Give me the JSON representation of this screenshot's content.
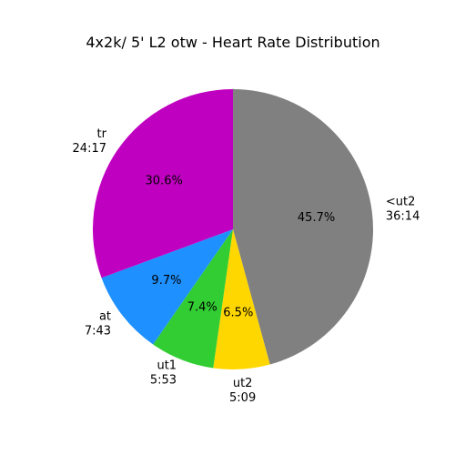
{
  "chart_data": {
    "type": "pie",
    "title": "4x2k/ 5' L2 otw - Heart Rate Distribution",
    "slices": [
      {
        "name": "<ut2",
        "time": "36:14",
        "percent_label": "45.7%",
        "value": 45.7,
        "color": "#808080"
      },
      {
        "name": "ut2",
        "time": "5:09",
        "percent_label": "6.5%",
        "value": 6.5,
        "color": "#FFD700"
      },
      {
        "name": "ut1",
        "time": "5:53",
        "percent_label": "7.4%",
        "value": 7.4,
        "color": "#32CD32"
      },
      {
        "name": "at",
        "time": "7:43",
        "percent_label": "9.7%",
        "value": 9.7,
        "color": "#1E90FF"
      },
      {
        "name": "tr",
        "time": "24:17",
        "percent_label": "30.6%",
        "value": 30.6,
        "color": "#C000C0"
      }
    ],
    "direction": "clockwise",
    "start": "top"
  }
}
